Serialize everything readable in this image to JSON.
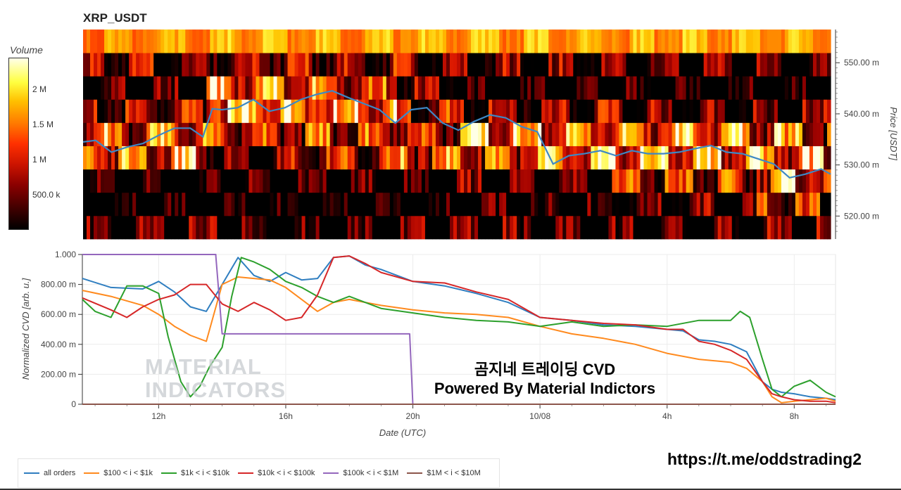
{
  "title": "XRP_USDT",
  "colorbar": {
    "label": "Volume",
    "ticks": [
      {
        "label": "2 M",
        "value": 2000000
      },
      {
        "label": "1.5 M",
        "value": 1500000
      },
      {
        "label": "1 M",
        "value": 1000000
      },
      {
        "label": "500.0 k",
        "value": 500000
      }
    ],
    "range": [
      0,
      2450000
    ]
  },
  "overlay_text": {
    "line1": "곰지네 트레이딩 CVD",
    "line2": "Powered By Material Indictors"
  },
  "watermark": {
    "line1": "MATERIAL",
    "line2": "INDICATORS"
  },
  "link": "https://t.me/oddstrading2",
  "colors": {
    "all_orders": "#2f7ec0",
    "100_1k": "#ff8a1e",
    "1k_10k": "#2ca02c",
    "10k_100k": "#d62728",
    "100k_1m": "#9467bd",
    "1m_10m": "#8c564b",
    "price_line": "#3d88c5"
  },
  "chart_data": [
    {
      "type": "heatmap",
      "title": "XRP_USDT",
      "ylabel": "Price [USDT]",
      "y_ticks": [
        "520.00 m",
        "530.00 m",
        "540.00 m",
        "550.00 m"
      ],
      "ylim": [
        0.5155,
        0.5565
      ],
      "price_bands": [
        0.5175,
        0.5225,
        0.5275,
        0.5325,
        0.5375,
        0.5425,
        0.5475,
        0.5525,
        0.5555
      ],
      "x_range_hours": [
        9.6,
        33.3
      ],
      "intensity_by_period": [
        {
          "from_hour": 9.6,
          "to_hour": 13.5,
          "bands": [
            0.25,
            0.05,
            0.12,
            0.85,
            0.75,
            0.45,
            0.25,
            0.4,
            0.8
          ]
        },
        {
          "from_hour": 13.5,
          "to_hour": 17.0,
          "bands": [
            0.25,
            0.05,
            0.15,
            0.4,
            0.7,
            0.95,
            0.8,
            0.55,
            0.85
          ]
        },
        {
          "from_hour": 17.0,
          "to_hour": 19.5,
          "bands": [
            0.25,
            0.08,
            0.2,
            0.55,
            0.7,
            0.85,
            0.7,
            0.45,
            0.85
          ]
        },
        {
          "from_hour": 19.5,
          "to_hour": 21.5,
          "bands": [
            0.25,
            0.08,
            0.2,
            0.75,
            0.65,
            0.55,
            0.35,
            0.35,
            0.85
          ]
        },
        {
          "from_hour": 21.5,
          "to_hour": 26.3,
          "bands": [
            0.25,
            0.15,
            0.3,
            0.8,
            0.85,
            0.45,
            0.12,
            0.35,
            0.85
          ]
        },
        {
          "from_hour": 26.3,
          "to_hour": 31.0,
          "bands": [
            0.25,
            0.3,
            0.6,
            0.9,
            0.85,
            0.35,
            0.1,
            0.3,
            0.85
          ]
        },
        {
          "from_hour": 31.0,
          "to_hour": 33.3,
          "bands": [
            0.3,
            0.55,
            0.85,
            0.85,
            0.75,
            0.3,
            0.1,
            0.25,
            0.85
          ]
        }
      ],
      "price_line": {
        "x_hours": [
          9.6,
          10.0,
          10.5,
          11.0,
          11.5,
          12.0,
          12.5,
          13.0,
          13.4,
          13.7,
          14.0,
          14.5,
          15.0,
          15.5,
          16.0,
          16.5,
          17.0,
          17.5,
          18.0,
          18.5,
          19.0,
          19.5,
          20.0,
          20.5,
          21.0,
          21.5,
          22.0,
          22.5,
          23.0,
          23.5,
          24.0,
          24.5,
          25.0,
          25.5,
          26.0,
          26.5,
          27.0,
          27.5,
          28.0,
          28.5,
          29.0,
          29.5,
          30.0,
          30.5,
          31.0,
          31.5,
          32.0,
          32.5,
          33.0,
          33.3
        ],
        "y": [
          0.5345,
          0.5348,
          0.5325,
          0.5335,
          0.5342,
          0.5358,
          0.5372,
          0.5372,
          0.5355,
          0.541,
          0.5408,
          0.5412,
          0.5428,
          0.5405,
          0.5412,
          0.5428,
          0.5438,
          0.5445,
          0.5432,
          0.542,
          0.5408,
          0.5382,
          0.5408,
          0.5412,
          0.5382,
          0.5368,
          0.5385,
          0.5398,
          0.5392,
          0.5375,
          0.5365,
          0.5302,
          0.5318,
          0.5322,
          0.5328,
          0.5318,
          0.5328,
          0.5322,
          0.5322,
          0.5325,
          0.5332,
          0.5338,
          0.5325,
          0.5322,
          0.5312,
          0.5302,
          0.5275,
          0.5282,
          0.5292,
          0.5282
        ]
      }
    },
    {
      "type": "line",
      "xlabel": "Date (UTC)",
      "ylabel": "Normalized CVD [arb. u.]",
      "x_ticks": [
        {
          "label": "12h",
          "hour": 12
        },
        {
          "label": "16h",
          "hour": 16
        },
        {
          "label": "20h",
          "hour": 20
        },
        {
          "label": "10/08",
          "hour": 24
        },
        {
          "label": "4h",
          "hour": 28
        },
        {
          "label": "8h",
          "hour": 32
        }
      ],
      "y_ticks": [
        "0",
        "200.00 m",
        "400.00 m",
        "600.00 m",
        "800.00 m",
        "1.000"
      ],
      "ylim": [
        0,
        1
      ],
      "xlim_hours": [
        9.6,
        33.3
      ],
      "series": [
        {
          "name": "all orders",
          "color_key": "all_orders",
          "x": [
            9.6,
            10.5,
            11.5,
            12.0,
            12.5,
            13.0,
            13.5,
            14.0,
            14.5,
            15.0,
            15.5,
            16.0,
            16.5,
            17.0,
            17.5,
            18.0,
            18.5,
            19.0,
            20.0,
            21.0,
            22.0,
            23.0,
            24.0,
            25.0,
            26.0,
            27.0,
            28.0,
            28.5,
            29.0,
            29.5,
            30.0,
            30.5,
            31.0,
            31.3,
            31.6,
            32.0,
            32.5,
            33.0,
            33.3
          ],
          "y": [
            0.84,
            0.78,
            0.77,
            0.82,
            0.75,
            0.65,
            0.62,
            0.8,
            0.98,
            0.86,
            0.82,
            0.88,
            0.83,
            0.84,
            0.98,
            0.99,
            0.93,
            0.9,
            0.82,
            0.79,
            0.74,
            0.68,
            0.58,
            0.56,
            0.53,
            0.52,
            0.5,
            0.49,
            0.43,
            0.42,
            0.4,
            0.35,
            0.15,
            0.1,
            0.08,
            0.07,
            0.05,
            0.04,
            0.03
          ]
        },
        {
          "name": "$100 < i < $1k",
          "color_key": "100_1k",
          "x": [
            9.6,
            10.5,
            11.5,
            12.0,
            12.5,
            13.0,
            13.5,
            14.0,
            14.5,
            15.0,
            15.5,
            16.0,
            16.5,
            17.0,
            17.5,
            18.0,
            19.0,
            20.0,
            21.0,
            22.0,
            23.0,
            24.0,
            25.0,
            26.0,
            27.0,
            28.0,
            29.0,
            30.0,
            30.5,
            31.0,
            31.3,
            31.6,
            32.0,
            32.5,
            33.0,
            33.3
          ],
          "y": [
            0.76,
            0.72,
            0.66,
            0.6,
            0.52,
            0.46,
            0.42,
            0.8,
            0.85,
            0.84,
            0.83,
            0.78,
            0.7,
            0.62,
            0.68,
            0.7,
            0.66,
            0.63,
            0.61,
            0.6,
            0.58,
            0.52,
            0.47,
            0.44,
            0.4,
            0.34,
            0.3,
            0.28,
            0.24,
            0.15,
            0.05,
            0.01,
            0.02,
            0.03,
            0.04,
            0.02
          ]
        },
        {
          "name": "$1k < i < $10k",
          "color_key": "1k_10k",
          "x": [
            9.6,
            10.0,
            10.5,
            11.0,
            11.5,
            12.0,
            12.3,
            12.7,
            13.0,
            13.3,
            13.6,
            14.0,
            14.3,
            14.6,
            15.0,
            15.5,
            16.0,
            16.5,
            17.0,
            17.5,
            18.0,
            19.0,
            20.0,
            21.0,
            22.0,
            23.0,
            24.0,
            25.0,
            26.0,
            27.0,
            28.0,
            29.0,
            30.0,
            30.3,
            30.6,
            31.0,
            31.3,
            31.6,
            32.0,
            32.5,
            33.0,
            33.3
          ],
          "y": [
            0.7,
            0.62,
            0.58,
            0.79,
            0.79,
            0.74,
            0.45,
            0.15,
            0.05,
            0.12,
            0.25,
            0.38,
            0.72,
            0.98,
            0.95,
            0.9,
            0.82,
            0.78,
            0.72,
            0.68,
            0.72,
            0.64,
            0.61,
            0.58,
            0.56,
            0.55,
            0.52,
            0.55,
            0.52,
            0.53,
            0.52,
            0.56,
            0.56,
            0.62,
            0.58,
            0.3,
            0.1,
            0.05,
            0.12,
            0.16,
            0.08,
            0.05
          ]
        },
        {
          "name": "$10k < i < $100k",
          "color_key": "10k_100k",
          "x": [
            9.6,
            10.5,
            11.0,
            11.5,
            12.0,
            12.5,
            13.0,
            13.5,
            14.0,
            14.5,
            15.0,
            15.5,
            16.0,
            16.5,
            17.0,
            17.5,
            18.0,
            18.5,
            19.0,
            20.0,
            21.0,
            22.0,
            23.0,
            24.0,
            25.0,
            26.0,
            27.0,
            28.0,
            28.5,
            29.0,
            29.5,
            30.0,
            30.5,
            31.0,
            31.3,
            31.6,
            32.0,
            32.5,
            33.0,
            33.3
          ],
          "y": [
            0.71,
            0.63,
            0.58,
            0.65,
            0.7,
            0.73,
            0.8,
            0.8,
            0.67,
            0.62,
            0.68,
            0.63,
            0.56,
            0.58,
            0.73,
            0.98,
            0.99,
            0.94,
            0.88,
            0.82,
            0.81,
            0.75,
            0.7,
            0.58,
            0.56,
            0.54,
            0.53,
            0.5,
            0.5,
            0.42,
            0.4,
            0.36,
            0.3,
            0.15,
            0.07,
            0.05,
            0.03,
            0.02,
            0.02,
            0.01
          ]
        },
        {
          "name": "$100k < i < $1M",
          "color_key": "100k_1m",
          "x": [
            9.6,
            13.8,
            13.8,
            14.0,
            14.0,
            19.9,
            20.0,
            33.3
          ],
          "y": [
            1.0,
            1.0,
            0.99,
            0.47,
            0.47,
            0.47,
            0.0,
            0.0
          ]
        },
        {
          "name": "$1M < i < $10M",
          "color_key": "1m_10m",
          "x": [
            9.6,
            33.3
          ],
          "y": [
            0.0,
            0.0
          ]
        }
      ]
    }
  ]
}
